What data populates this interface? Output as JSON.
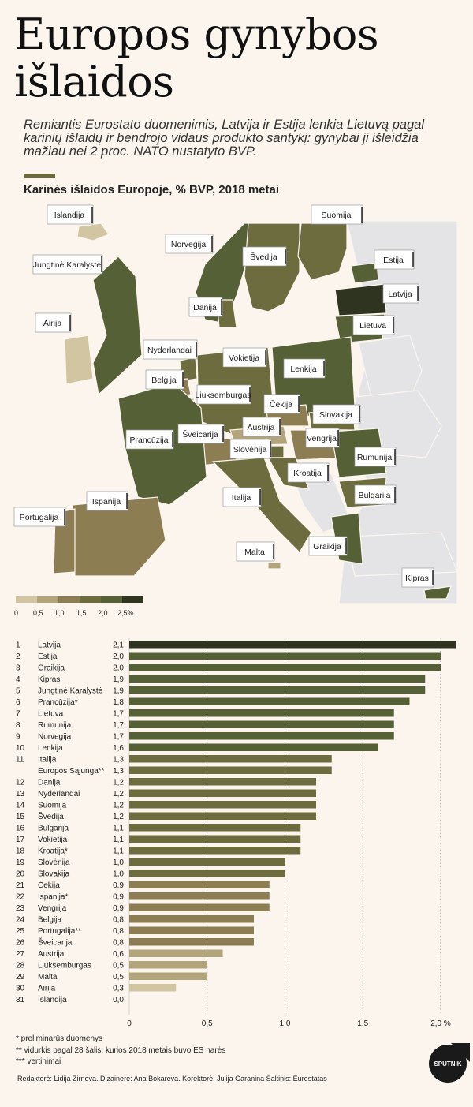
{
  "header": {
    "title": "Europos gynybos išlaidos",
    "subtitle": "Remiantis Eurostato duomenimis, Latvija ir Estija lenkia Lietuvą pagal karinių išlaidų ir bendrojo vidaus produkto santykį: gynybai ji išleidžia mažiau nei 2 proc. NATO nustatyto BVP."
  },
  "map": {
    "title": "Karinės išlaidos Europoje, % BVP, 2018 metai",
    "labels": [
      "Islandija",
      "Suomija",
      "Norvegija",
      "Švedija",
      "Estija",
      "Jungtinė Karalystė",
      "Latvija",
      "Danija",
      "Airija",
      "Lietuva",
      "Nyderlandai",
      "Vokietija",
      "Lenkija",
      "Belgija",
      "Liuksemburgas",
      "Čekija",
      "Slovakija",
      "Austrija",
      "Prancūzija",
      "Šveicarija",
      "Vengrija",
      "Slovėnija",
      "Rumunija",
      "Kroatija",
      "Italija",
      "Bulgarija",
      "Ispanija",
      "Portugalija",
      "Malta",
      "Graikija",
      "Kipras"
    ]
  },
  "legend": {
    "ticks": [
      "0",
      "0,5",
      "1,0",
      "1,5",
      "2,0",
      "2,5%"
    ],
    "colors": [
      "#d2c6a2",
      "#b3a57b",
      "#8d7d53",
      "#6d6c3f",
      "#566036",
      "#2e3420"
    ]
  },
  "colors": {
    "background": "#fbf5ee",
    "non_member": "#e4e4e6"
  },
  "chart_data": {
    "type": "bar",
    "orientation": "horizontal",
    "ranks": [
      "1",
      "2",
      "3",
      "4",
      "5",
      "6",
      "7",
      "8",
      "9",
      "10",
      "11",
      "",
      "12",
      "13",
      "14",
      "15",
      "16",
      "17",
      "18",
      "19",
      "20",
      "21",
      "22",
      "23",
      "24",
      "25",
      "26",
      "27",
      "28",
      "29",
      "30",
      "31"
    ],
    "categories": [
      "Latvija",
      "Estija",
      "Graikija",
      "Kipras",
      "Jungtinė Karalystė",
      "Prancūzija*",
      "Lietuva",
      "Rumunija",
      "Norvegija",
      "Lenkija",
      "Italija",
      "Europos Sąjunga**",
      "Danija",
      "Nyderlandai",
      "Suomija",
      "Švedija",
      "Bulgarija",
      "Vokietija",
      "Kroatija*",
      "Slovėnija",
      "Slovakija",
      "Čekija",
      "Ispanija*",
      "Vengrija",
      "Belgija",
      "Portugalija**",
      "Šveicarija",
      "Austrija",
      "Liuksemburgas",
      "Malta",
      "Airija",
      "Islandija"
    ],
    "values": [
      2.1,
      2.0,
      2.0,
      1.9,
      1.9,
      1.8,
      1.7,
      1.7,
      1.7,
      1.6,
      1.3,
      1.3,
      1.2,
      1.2,
      1.2,
      1.2,
      1.1,
      1.1,
      1.1,
      1.0,
      1.0,
      0.9,
      0.9,
      0.9,
      0.8,
      0.8,
      0.8,
      0.6,
      0.5,
      0.5,
      0.3,
      0.0
    ],
    "value_labels": [
      "2,1",
      "2,0",
      "2,0",
      "1,9",
      "1,9",
      "1,8",
      "1,7",
      "1,7",
      "1,7",
      "1,6",
      "1,3",
      "1,3",
      "1,2",
      "1,2",
      "1,2",
      "1,2",
      "1,1",
      "1,1",
      "1,1",
      "1,0",
      "1,0",
      "0,9",
      "0,9",
      "0,9",
      "0,8",
      "0,8",
      "0,8",
      "0,6",
      "0,5",
      "0,5",
      "0,3",
      "0,0"
    ],
    "xlim": [
      0,
      2.1
    ],
    "xticks": [
      0,
      0.5,
      1.0,
      1.5,
      2.0
    ],
    "xtick_labels": [
      "0",
      "0,5",
      "1,0",
      "1,5",
      "2,0 %"
    ],
    "gridlines": "dotted vertical"
  },
  "footnotes": {
    "f1": "* preliminarūs duomenys",
    "f2": "** vidurkis pagal 28 šalis, kurios 2018 metais buvo ES narės",
    "f3": "*** vertinimai"
  },
  "credits": "Redaktorė: Lidija Žirnova. Dizainerė: Ana Bokareva. Korektorė: Julija Garanina Šaltinis: Eurostatas",
  "logo_text": "SPUTNIK"
}
